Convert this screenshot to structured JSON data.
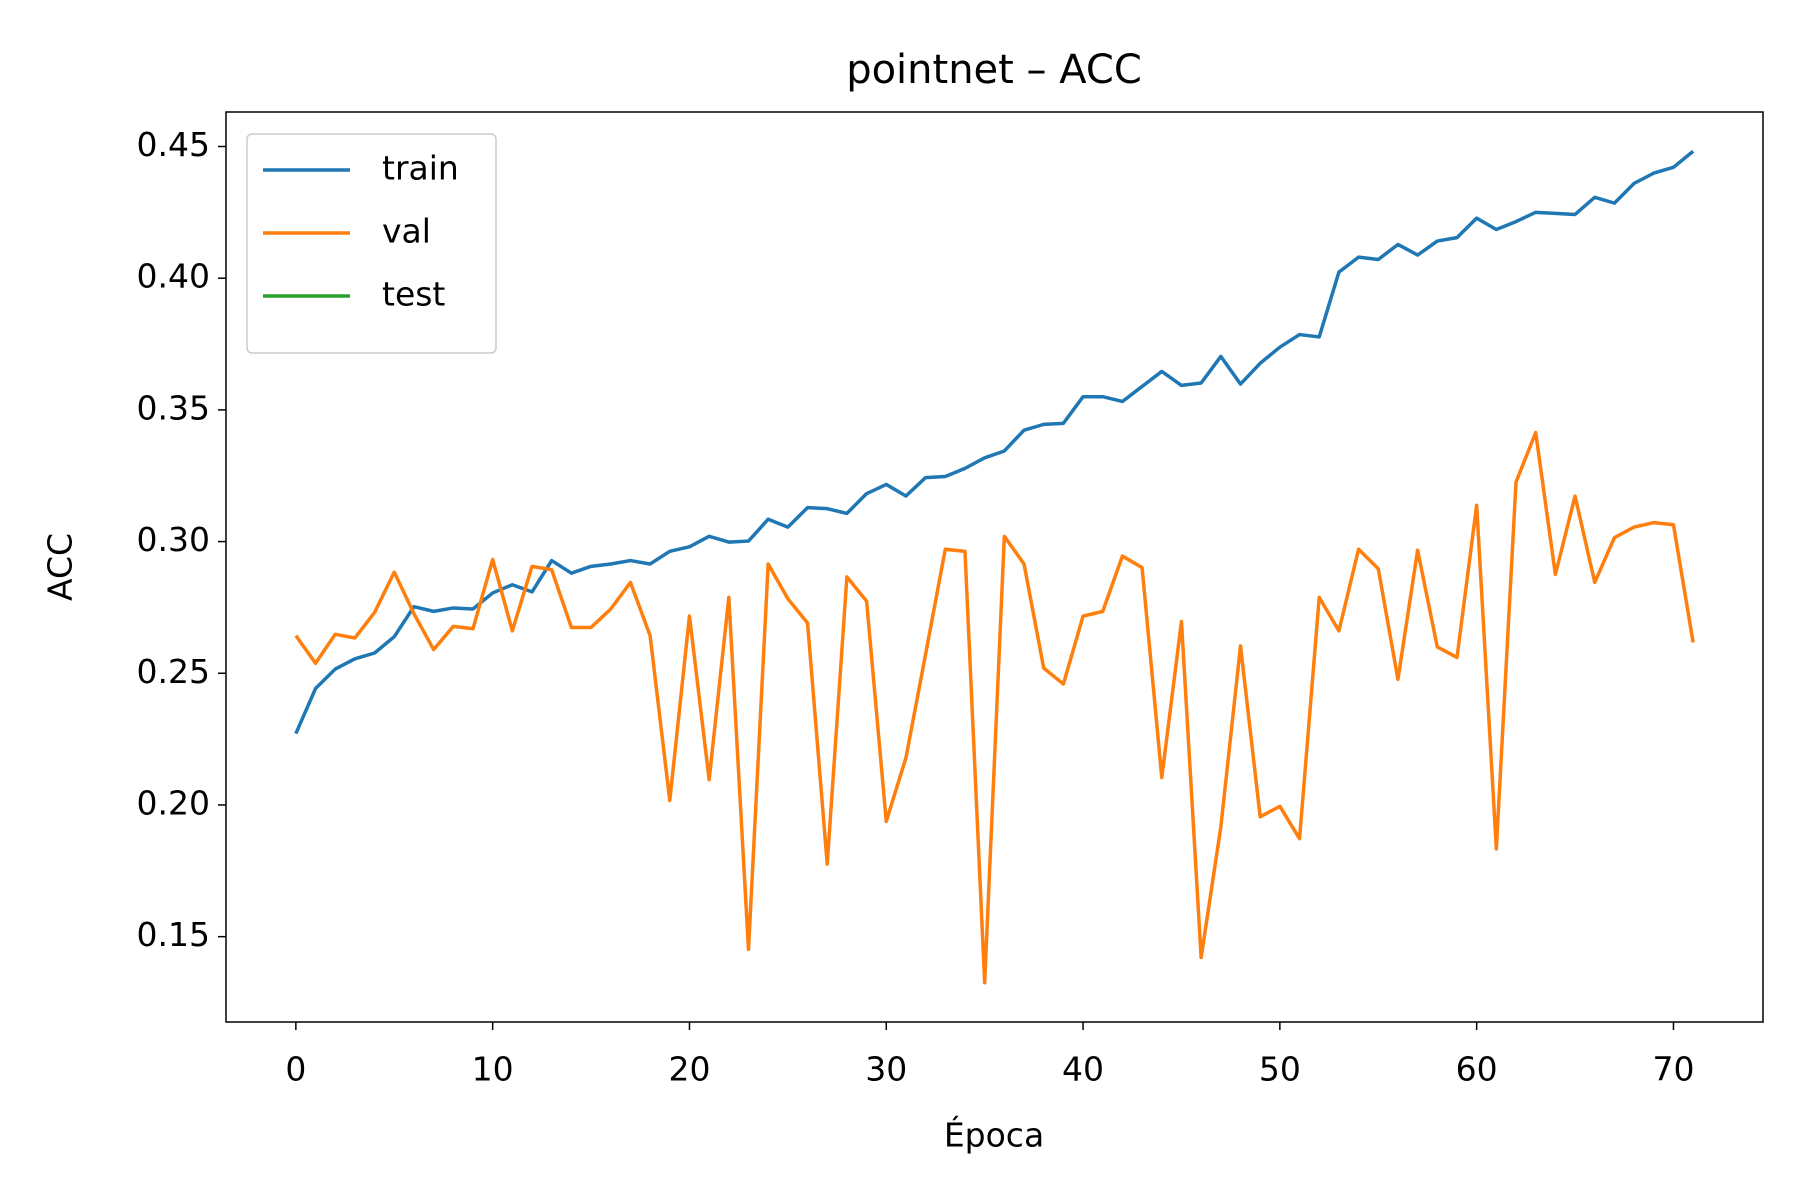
{
  "chart_data": {
    "type": "line",
    "title": "pointnet – ACC",
    "xlabel": "Época",
    "ylabel": "ACC",
    "x": [
      0,
      1,
      2,
      3,
      4,
      5,
      6,
      7,
      8,
      9,
      10,
      11,
      12,
      13,
      14,
      15,
      16,
      17,
      18,
      19,
      20,
      21,
      22,
      23,
      24,
      25,
      26,
      27,
      28,
      29,
      30,
      31,
      32,
      33,
      34,
      35,
      36,
      37,
      38,
      39,
      40,
      41,
      42,
      43,
      44,
      45,
      46,
      47,
      48,
      49,
      50,
      51,
      52,
      53,
      54,
      55,
      56,
      57,
      58,
      59,
      60,
      61,
      62,
      63,
      64,
      65,
      66,
      67,
      68,
      69,
      70,
      71
    ],
    "series": [
      {
        "name": "train",
        "color": "#1f77b4",
        "values": [
          0.2271,
          0.2442,
          0.2516,
          0.2555,
          0.2577,
          0.2639,
          0.2753,
          0.2735,
          0.2748,
          0.2744,
          0.2805,
          0.2836,
          0.2809,
          0.2928,
          0.288,
          0.2906,
          0.2915,
          0.2928,
          0.2915,
          0.2963,
          0.298,
          0.302,
          0.2998,
          0.3002,
          0.3085,
          0.3055,
          0.3129,
          0.3125,
          0.3107,
          0.3182,
          0.3217,
          0.3173,
          0.3243,
          0.3247,
          0.3278,
          0.3318,
          0.3344,
          0.3423,
          0.3445,
          0.3449,
          0.355,
          0.355,
          0.3532,
          0.3589,
          0.3646,
          0.3593,
          0.3602,
          0.3703,
          0.3598,
          0.3677,
          0.3738,
          0.3786,
          0.3777,
          0.4023,
          0.408,
          0.4071,
          0.4128,
          0.4088,
          0.4141,
          0.4154,
          0.4228,
          0.4185,
          0.4215,
          0.425,
          0.4246,
          0.4242,
          0.4307,
          0.4285,
          0.436,
          0.4399,
          0.4421,
          0.4482
        ]
      },
      {
        "name": "val",
        "color": "#ff7f0e",
        "values": [
          0.2643,
          0.2538,
          0.2648,
          0.2634,
          0.2731,
          0.2884,
          0.2726,
          0.259,
          0.2678,
          0.2669,
          0.2932,
          0.2661,
          0.2906,
          0.2893,
          0.2674,
          0.2674,
          0.2744,
          0.2845,
          0.2643,
          0.2017,
          0.2717,
          0.2096,
          0.2788,
          0.1452,
          0.2915,
          0.2783,
          0.2691,
          0.1776,
          0.2866,
          0.2774,
          0.1938,
          0.2179,
          0.2573,
          0.2971,
          0.2963,
          0.1325,
          0.302,
          0.2915,
          0.252,
          0.2459,
          0.2717,
          0.2735,
          0.2945,
          0.2901,
          0.2104,
          0.2696,
          0.1421,
          0.1916,
          0.2604,
          0.1955,
          0.1995,
          0.1872,
          0.2788,
          0.2661,
          0.2971,
          0.2897,
          0.2477,
          0.2967,
          0.26,
          0.256,
          0.3138,
          0.1833,
          0.3226,
          0.3414,
          0.2875,
          0.3173,
          0.2845,
          0.3015,
          0.3055,
          0.3072,
          0.3064,
          0.2617
        ]
      },
      {
        "name": "test",
        "color": "#2ca02c",
        "values": [
          null,
          null,
          null,
          null,
          null,
          null,
          null,
          null,
          null,
          null,
          null,
          null,
          null,
          null,
          null,
          null,
          null,
          null,
          null,
          null,
          null,
          null,
          null,
          null,
          null,
          null,
          null,
          null,
          null,
          null,
          null,
          null,
          null,
          null,
          null,
          null,
          null,
          null,
          null,
          null,
          null,
          null,
          null,
          null,
          null,
          null,
          null,
          null,
          null,
          null,
          null,
          null,
          null,
          null,
          null,
          null,
          null,
          null,
          null,
          null,
          null,
          null,
          null,
          null,
          null,
          null,
          null,
          null,
          null,
          null,
          null,
          null
        ]
      }
    ],
    "xlim": [
      -3.55,
      74.55
    ],
    "xticks": [
      0,
      10,
      20,
      30,
      40,
      50,
      60,
      70
    ],
    "ylim": [
      0.1176,
      0.4631
    ],
    "yticks": [
      0.15,
      {
        "value": 0.2,
        "label": "0.20"
      },
      0.25,
      {
        "value": 0.3,
        "label": "0.30"
      },
      0.35,
      {
        "value": 0.4,
        "label": "0.40"
      },
      0.45
    ],
    "grid": false,
    "legend": "upper left"
  }
}
